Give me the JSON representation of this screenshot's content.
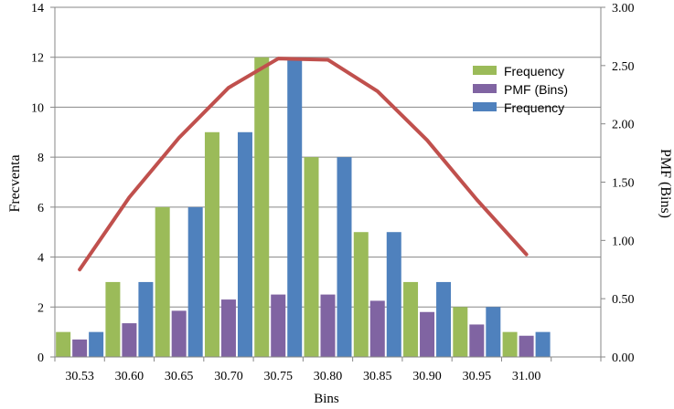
{
  "chart_data": {
    "type": "bar",
    "categories": [
      "30.53",
      "30.60",
      "30.65",
      "30.70",
      "30.75",
      "30.80",
      "30.85",
      "30.90",
      "30.95",
      "31.00"
    ],
    "series": [
      {
        "name": "Frequency",
        "type": "bar",
        "axis": "left",
        "color": "#9bbb59",
        "values": [
          1,
          3,
          6,
          9,
          12,
          8,
          5,
          3,
          2,
          1
        ]
      },
      {
        "name": "PMF (Bins)",
        "type": "bar",
        "axis": "left",
        "color": "#8064a2",
        "values": [
          0.7,
          1.35,
          1.85,
          2.3,
          2.5,
          2.5,
          2.25,
          1.8,
          1.3,
          0.85
        ]
      },
      {
        "name": "Frequency",
        "type": "bar",
        "axis": "left",
        "color": "#4f81bd",
        "values": [
          1,
          3,
          6,
          9,
          12,
          8,
          5,
          3,
          2,
          1
        ]
      },
      {
        "type": "line",
        "axis": "right",
        "color": "#c0504d",
        "values": [
          0.75,
          1.37,
          1.88,
          2.31,
          2.56,
          2.55,
          2.28,
          1.86,
          1.35,
          0.88
        ]
      }
    ],
    "xlabel": "Bins",
    "ylabel": "Frecventa",
    "y2label": "PMF (Bins)",
    "ylim": [
      0,
      14
    ],
    "y2lim": [
      0,
      3
    ],
    "yticks": [
      "0",
      "2",
      "4",
      "6",
      "8",
      "10",
      "12",
      "14"
    ],
    "y2ticks": [
      "0.00",
      "0.50",
      "1.00",
      "1.50",
      "2.00",
      "2.50",
      "3.00"
    ],
    "grid": true,
    "legend_position": "top-right",
    "legend": [
      {
        "label": "Frequency",
        "color": "#9bbb59"
      },
      {
        "label": "PMF (Bins)",
        "color": "#8064a2"
      },
      {
        "label": "Frequency",
        "color": "#4f81bd"
      }
    ]
  }
}
